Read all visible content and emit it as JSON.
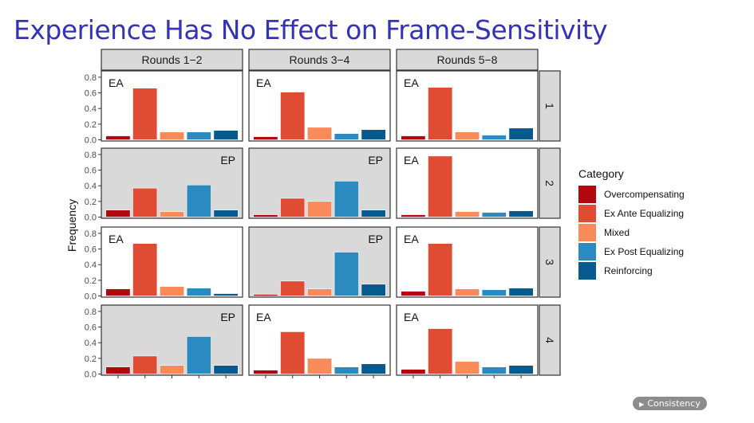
{
  "slide": {
    "title": "Experience Has No Effect on Frame-Sensitivity",
    "nav_button": {
      "label": "Consistency",
      "icon": "triangle-right-icon"
    }
  },
  "chart_data": {
    "type": "bar",
    "title": "",
    "ylabel": "Frequency",
    "xlabel": "",
    "ylim": [
      0,
      0.85
    ],
    "yticks": [
      0.0,
      0.2,
      0.4,
      0.6,
      0.8
    ],
    "ytick_labels": [
      "0.0",
      "0.2",
      "0.4",
      "0.6",
      "0.8"
    ],
    "categories": [
      "Overcompensating",
      "Ex Ante Equalizing",
      "Mixed",
      "Ex Post Equalizing",
      "Reinforcing"
    ],
    "colors": [
      "#b2070f",
      "#e04b33",
      "#f98b5b",
      "#2b8bc0",
      "#075a8e"
    ],
    "legend": {
      "title": "Category",
      "position": "right"
    },
    "column_facets": [
      "Rounds 1−2",
      "Rounds 3−4",
      "Rounds 5−8"
    ],
    "row_facets": [
      "1",
      "2",
      "3",
      "4"
    ],
    "panel_bg": {
      "EA": "#ffffff",
      "EP": "#d9d9d9"
    },
    "strip_bg": "#d9d9d9",
    "panels": [
      {
        "row": "1",
        "col": "Rounds 1−2",
        "label": "EA",
        "values": [
          0.05,
          0.66,
          0.1,
          0.1,
          0.12
        ]
      },
      {
        "row": "1",
        "col": "Rounds 3−4",
        "label": "EA",
        "values": [
          0.04,
          0.61,
          0.16,
          0.08,
          0.13
        ]
      },
      {
        "row": "1",
        "col": "Rounds 5−8",
        "label": "EA",
        "values": [
          0.05,
          0.67,
          0.1,
          0.06,
          0.15
        ]
      },
      {
        "row": "2",
        "col": "Rounds 1−2",
        "label": "EP",
        "values": [
          0.09,
          0.37,
          0.07,
          0.41,
          0.09
        ]
      },
      {
        "row": "2",
        "col": "Rounds 3−4",
        "label": "EP",
        "values": [
          0.03,
          0.24,
          0.2,
          0.46,
          0.09
        ]
      },
      {
        "row": "2",
        "col": "Rounds 5−8",
        "label": "EA",
        "values": [
          0.03,
          0.78,
          0.07,
          0.06,
          0.08
        ]
      },
      {
        "row": "3",
        "col": "Rounds 1−2",
        "label": "EA",
        "values": [
          0.09,
          0.67,
          0.12,
          0.1,
          0.03
        ]
      },
      {
        "row": "3",
        "col": "Rounds 3−4",
        "label": "EP",
        "values": [
          0.02,
          0.19,
          0.09,
          0.56,
          0.15
        ]
      },
      {
        "row": "3",
        "col": "Rounds 5−8",
        "label": "EA",
        "values": [
          0.06,
          0.67,
          0.09,
          0.08,
          0.1
        ]
      },
      {
        "row": "4",
        "col": "Rounds 1−2",
        "label": "EP",
        "values": [
          0.09,
          0.23,
          0.11,
          0.48,
          0.11
        ]
      },
      {
        "row": "4",
        "col": "Rounds 3−4",
        "label": "EA",
        "values": [
          0.05,
          0.54,
          0.2,
          0.09,
          0.13
        ]
      },
      {
        "row": "4",
        "col": "Rounds 5−8",
        "label": "EA",
        "values": [
          0.06,
          0.58,
          0.16,
          0.09,
          0.11
        ]
      }
    ]
  }
}
